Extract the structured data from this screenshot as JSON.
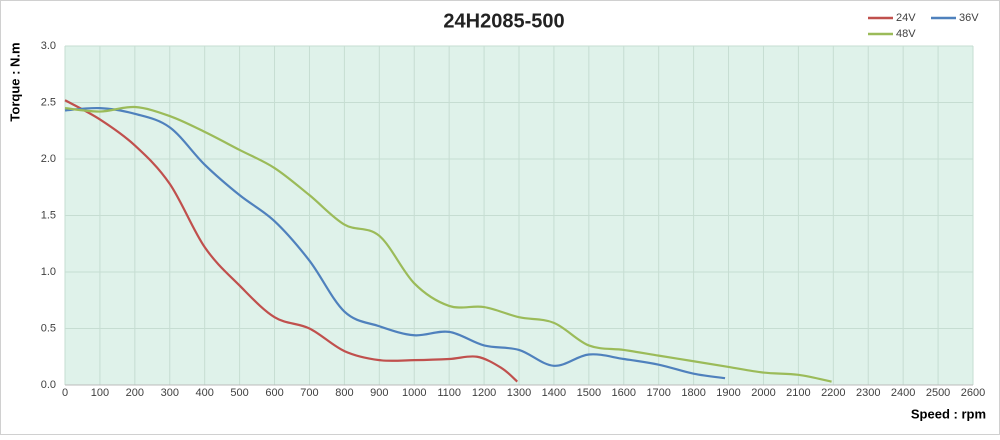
{
  "chart_data": {
    "type": "line",
    "title": "24H2085-500",
    "x_label": "Speed : rpm",
    "y_label": "Torque : N.m",
    "xlim": [
      0,
      2600
    ],
    "xticks": [
      0,
      100,
      200,
      300,
      400,
      500,
      600,
      700,
      800,
      900,
      1000,
      1100,
      1200,
      1300,
      1400,
      1500,
      1600,
      1700,
      1800,
      1900,
      2000,
      2100,
      2200,
      2300,
      2400,
      2500,
      2600
    ],
    "ylim": [
      0,
      3
    ],
    "yticks": [
      {
        "value": 0,
        "label": "0.0"
      },
      {
        "value": 0.5,
        "label": "0.5"
      },
      {
        "value": 1,
        "label": "1.0"
      },
      {
        "value": 1.5,
        "label": "1.5"
      },
      {
        "value": 2,
        "label": "2.0"
      },
      {
        "value": 2.5,
        "label": "2.5"
      },
      {
        "value": 3,
        "label": "3.0"
      }
    ],
    "grid": true,
    "legend": "top-right",
    "series": [
      {
        "name": "24V",
        "color": "#c0504d",
        "x": [
          0,
          100,
          200,
          300,
          400,
          500,
          600,
          700,
          800,
          900,
          1000,
          1100,
          1180,
          1250,
          1295
        ],
        "values": [
          2.52,
          2.35,
          2.12,
          1.78,
          1.22,
          0.88,
          0.6,
          0.5,
          0.3,
          0.22,
          0.22,
          0.23,
          0.25,
          0.15,
          0.03
        ]
      },
      {
        "name": "36V",
        "color": "#4f81bd",
        "x": [
          0,
          100,
          200,
          300,
          400,
          500,
          600,
          700,
          800,
          900,
          1000,
          1100,
          1200,
          1300,
          1400,
          1500,
          1600,
          1700,
          1800,
          1890
        ],
        "values": [
          2.43,
          2.45,
          2.4,
          2.28,
          1.95,
          1.68,
          1.45,
          1.1,
          0.65,
          0.52,
          0.44,
          0.47,
          0.35,
          0.31,
          0.17,
          0.27,
          0.23,
          0.18,
          0.1,
          0.06
        ]
      },
      {
        "name": "48V",
        "color": "#9bbb59",
        "x": [
          0,
          100,
          200,
          300,
          400,
          500,
          600,
          700,
          800,
          900,
          1000,
          1100,
          1200,
          1300,
          1400,
          1500,
          1600,
          1700,
          1800,
          1900,
          2000,
          2100,
          2195
        ],
        "values": [
          2.45,
          2.42,
          2.46,
          2.38,
          2.24,
          2.08,
          1.92,
          1.68,
          1.42,
          1.32,
          0.9,
          0.7,
          0.69,
          0.6,
          0.55,
          0.35,
          0.31,
          0.26,
          0.21,
          0.16,
          0.11,
          0.09,
          0.03
        ]
      }
    ]
  }
}
